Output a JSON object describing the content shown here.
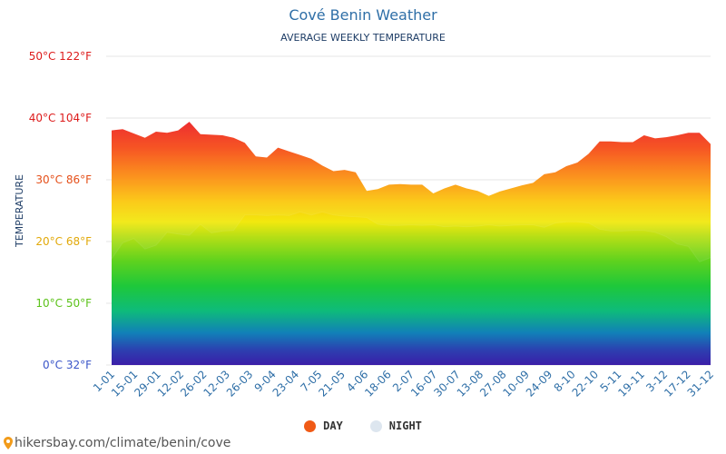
{
  "title": "Cové Benin Weather",
  "subtitle": "AVERAGE WEEKLY TEMPERATURE",
  "y_axis_label": "TEMPERATURE",
  "legend": {
    "day": "DAY",
    "night": "NIGHT"
  },
  "source": "hikersbay.com/climate/benin/cove",
  "colors": {
    "day_dot": "#f05a16",
    "night_dot": "#dde6ef",
    "title": "#2f6fa7",
    "grid": "#e6e6e6"
  },
  "chart_data": {
    "type": "area",
    "title": "Cové Benin Weather",
    "subtitle": "AVERAGE WEEKLY TEMPERATURE",
    "ylabel": "TEMPERATURE",
    "ylim": [
      0,
      50
    ],
    "y_ticks": [
      {
        "c": 0,
        "label": "0°C 32°F",
        "color": "#3a55c8"
      },
      {
        "c": 10,
        "label": "10°C 50°F",
        "color": "#5cc21a"
      },
      {
        "c": 20,
        "label": "20°C 68°F",
        "color": "#e2a90a"
      },
      {
        "c": 30,
        "label": "30°C 86°F",
        "color": "#e5501a"
      },
      {
        "c": 40,
        "label": "40°C 104°F",
        "color": "#dd1b1b"
      },
      {
        "c": 50,
        "label": "50°C 122°F",
        "color": "#dd1b1b"
      }
    ],
    "x_labels": [
      "1-01",
      "15-01",
      "29-01",
      "12-02",
      "26-02",
      "12-03",
      "26-03",
      "9-04",
      "23-04",
      "7-05",
      "21-05",
      "4-06",
      "18-06",
      "2-07",
      "16-07",
      "30-07",
      "13-08",
      "27-08",
      "10-09",
      "24-09",
      "8-10",
      "22-10",
      "5-11",
      "19-11",
      "3-12",
      "17-12",
      "31-12"
    ],
    "series": [
      {
        "name": "DAY",
        "values": [
          38.0,
          38.2,
          37.5,
          36.8,
          37.8,
          37.6,
          38.0,
          39.4,
          37.4,
          37.3,
          37.2,
          36.8,
          36.0,
          33.8,
          33.6,
          35.2,
          34.6,
          34.0,
          33.4,
          32.3,
          31.4,
          31.6,
          31.2,
          28.2,
          28.5,
          29.2,
          29.3,
          29.2,
          29.2,
          27.8,
          28.6,
          29.2,
          28.6,
          28.2,
          27.4,
          28.1,
          28.6,
          29.1,
          29.5,
          30.9,
          31.2,
          32.2,
          32.8,
          34.2,
          36.2,
          36.2,
          36.1,
          36.1,
          37.2,
          36.7,
          36.9,
          37.2,
          37.6,
          37.6,
          35.8
        ]
      },
      {
        "name": "NIGHT",
        "values": [
          17.2,
          19.8,
          20.5,
          18.8,
          19.4,
          21.5,
          21.2,
          21.0,
          22.8,
          21.4,
          21.7,
          21.8,
          24.3,
          24.3,
          24.2,
          24.3,
          24.2,
          24.8,
          24.3,
          24.8,
          24.3,
          24.1,
          24.0,
          23.9,
          22.8,
          22.6,
          22.6,
          22.7,
          22.6,
          22.7,
          22.4,
          22.5,
          22.4,
          22.5,
          22.7,
          22.5,
          22.6,
          22.7,
          22.7,
          22.3,
          23.0,
          23.2,
          23.2,
          23.0,
          22.0,
          21.7,
          21.7,
          21.8,
          21.8,
          21.5,
          20.8,
          19.6,
          19.2,
          16.7,
          17.4
        ]
      }
    ],
    "grid": true,
    "legend_position": "bottom-center"
  }
}
